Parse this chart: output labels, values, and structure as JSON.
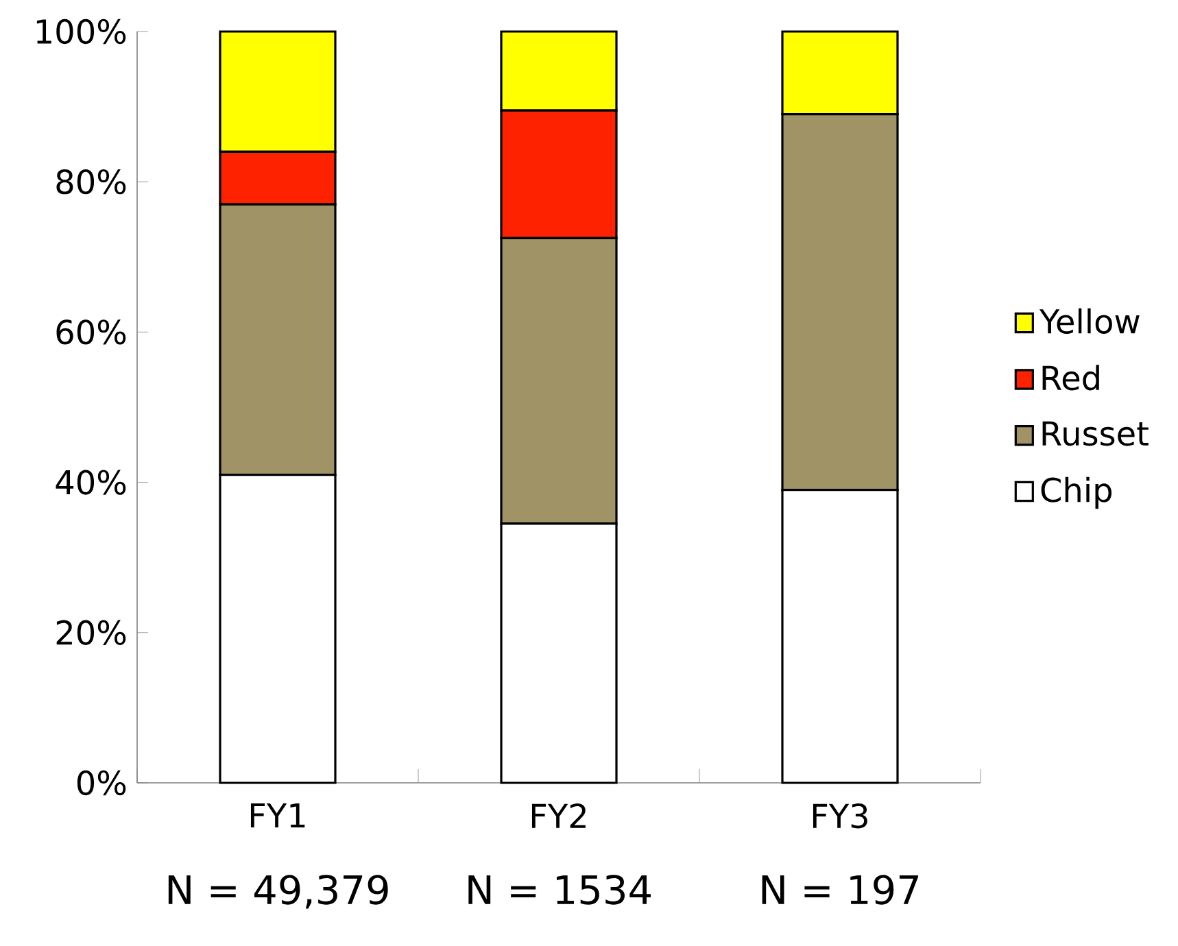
{
  "chart_data": {
    "type": "bar",
    "stacked": true,
    "categories": [
      "FY1",
      "FY2",
      "FY3"
    ],
    "series": [
      {
        "name": "Chip",
        "color": "#ffffff",
        "values": [
          41,
          34.5,
          39
        ]
      },
      {
        "name": "Russet",
        "color": "#a09365",
        "values": [
          36,
          38,
          50
        ]
      },
      {
        "name": "Red",
        "color": "#ff2200",
        "values": [
          7,
          17,
          0
        ]
      },
      {
        "name": "Yellow",
        "color": "#ffff00",
        "values": [
          16,
          10.5,
          11
        ]
      }
    ],
    "ylim": [
      0,
      100
    ],
    "yticks": [
      {
        "value": 0,
        "label": "0%"
      },
      {
        "value": 20,
        "label": "20%"
      },
      {
        "value": 40,
        "label": "40%"
      },
      {
        "value": 60,
        "label": "60%"
      },
      {
        "value": 80,
        "label": "80%"
      },
      {
        "value": 100,
        "label": "100%"
      }
    ],
    "grid": false,
    "legend": "right",
    "annotations": [
      "N = 49,379",
      "N = 1534",
      "N = 197"
    ]
  }
}
